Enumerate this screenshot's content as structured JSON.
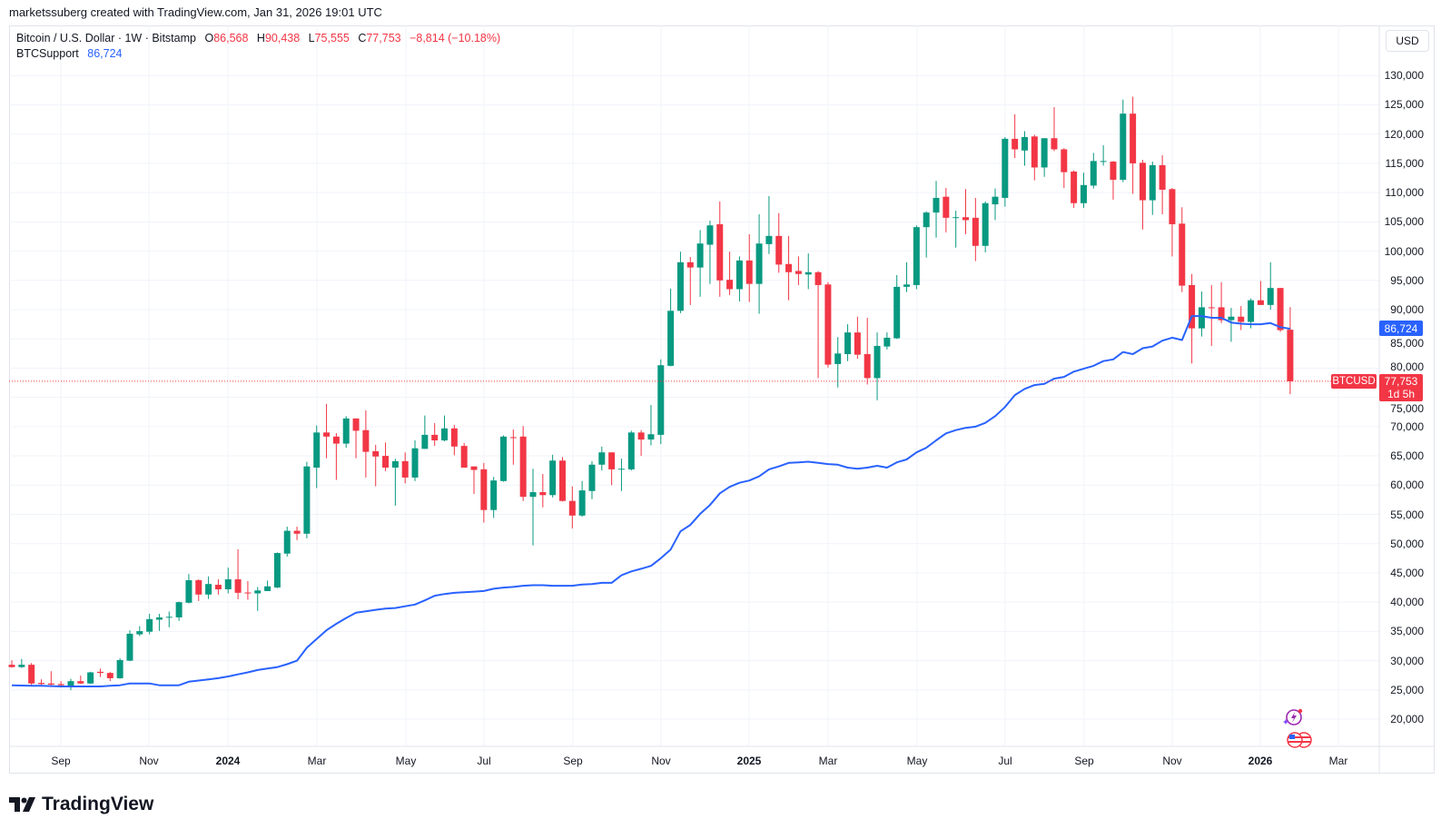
{
  "attribution": "marketssuberg created with TradingView.com, Jan 31, 2026 19:01 UTC",
  "legend": {
    "symbol": "Bitcoin / U.S. Dollar · 1W · Bitstamp",
    "o_label": "O",
    "o": "86,568",
    "h_label": "H",
    "h": "90,438",
    "l_label": "L",
    "l": "75,555",
    "c_label": "C",
    "c": "77,753",
    "change": "−8,814 (−10.18%)",
    "indicator_name": "BTCSupport",
    "indicator_value": "86,724"
  },
  "currency_button": "USD",
  "price_labels": {
    "indicator": "86,724",
    "symbol_tag": "BTCUSD",
    "last": "77,753",
    "countdown": "1d 5h"
  },
  "logo": "TradingView",
  "icons": [
    "economic-events-icon",
    "us-flag-events-icon",
    "tradingview-logo-icon"
  ],
  "colors": {
    "up": "#089981",
    "down": "#f23645",
    "indicator": "#2962ff",
    "grid": "#f0f3fa"
  },
  "chart_data": {
    "type": "candlestick",
    "interval": "1W",
    "ylim": [
      15350,
      138580
    ],
    "grid": true,
    "y_ticks": [
      "130,000",
      "125,000",
      "120,000",
      "115,000",
      "110,000",
      "105,000",
      "100,000",
      "95,000",
      "90,000",
      "85,000",
      "80,000",
      "75,000",
      "70,000",
      "65,000",
      "60,000",
      "55,000",
      "50,000",
      "45,000",
      "40,000",
      "35,000",
      "30,000",
      "25,000",
      "20,000"
    ],
    "x_ticks": [
      {
        "label": "Sep",
        "year": false
      },
      {
        "label": "Nov",
        "year": false
      },
      {
        "label": "2024",
        "year": true
      },
      {
        "label": "Mar",
        "year": false
      },
      {
        "label": "May",
        "year": false
      },
      {
        "label": "Jul",
        "year": false
      },
      {
        "label": "Sep",
        "year": false
      },
      {
        "label": "Nov",
        "year": false
      },
      {
        "label": "2025",
        "year": true
      },
      {
        "label": "Mar",
        "year": false
      },
      {
        "label": "May",
        "year": false
      },
      {
        "label": "Jul",
        "year": false
      },
      {
        "label": "Sep",
        "year": false
      },
      {
        "label": "Nov",
        "year": false
      },
      {
        "label": "2026",
        "year": true
      },
      {
        "label": "Mar",
        "year": false
      }
    ],
    "series": [
      {
        "name": "BTCUSD",
        "type": "candlestick",
        "ohlc_fields": [
          "open",
          "high",
          "low",
          "close"
        ],
        "ohlc": [
          [
            29300,
            30050,
            28800,
            28900
          ],
          [
            28900,
            30300,
            28750,
            29300
          ],
          [
            29300,
            29600,
            25750,
            26100
          ],
          [
            26200,
            26800,
            25800,
            26000
          ],
          [
            26100,
            28200,
            25500,
            25900
          ],
          [
            26000,
            26500,
            25400,
            25800
          ],
          [
            25750,
            26900,
            24950,
            26500
          ],
          [
            26500,
            27450,
            26000,
            26100
          ],
          [
            26100,
            28100,
            26000,
            28000
          ],
          [
            28100,
            28650,
            27200,
            27900
          ],
          [
            27900,
            28100,
            26500,
            27000
          ],
          [
            27000,
            30400,
            26900,
            30100
          ],
          [
            30000,
            35200,
            29900,
            34600
          ],
          [
            34500,
            35900,
            34200,
            35050
          ],
          [
            34950,
            38000,
            34500,
            37100
          ],
          [
            37000,
            38000,
            35100,
            37400
          ],
          [
            37450,
            38400,
            35700,
            37500
          ],
          [
            37400,
            40100,
            36800,
            40000
          ],
          [
            39900,
            44800,
            39800,
            43750
          ],
          [
            43750,
            43900,
            40200,
            41300
          ],
          [
            41300,
            44400,
            40550,
            43100
          ],
          [
            42970,
            43900,
            41300,
            42200
          ],
          [
            42200,
            45900,
            41500,
            43900
          ],
          [
            43900,
            49050,
            40500,
            41600
          ],
          [
            41650,
            43600,
            40400,
            41550
          ],
          [
            41500,
            42600,
            38500,
            42000
          ],
          [
            41900,
            43700,
            41900,
            42700
          ],
          [
            42500,
            48500,
            42400,
            48400
          ],
          [
            48300,
            52900,
            47800,
            52200
          ],
          [
            52200,
            52900,
            50600,
            51700
          ],
          [
            51700,
            64000,
            50900,
            63200
          ],
          [
            63000,
            70200,
            59500,
            69000
          ],
          [
            69000,
            73900,
            64600,
            68300
          ],
          [
            68300,
            68900,
            60900,
            67100
          ],
          [
            67100,
            71800,
            66400,
            71400
          ],
          [
            71400,
            71400,
            64600,
            69300
          ],
          [
            69400,
            72800,
            61300,
            65700
          ],
          [
            65800,
            66900,
            59800,
            64900
          ],
          [
            65000,
            67300,
            62400,
            63000
          ],
          [
            63000,
            64500,
            56500,
            64100
          ],
          [
            64100,
            65600,
            60300,
            61300
          ],
          [
            61300,
            67650,
            60700,
            66300
          ],
          [
            66200,
            71900,
            66200,
            68600
          ],
          [
            68600,
            70600,
            66700,
            67650
          ],
          [
            67650,
            71900,
            67500,
            69700
          ],
          [
            69700,
            70300,
            65100,
            66600
          ],
          [
            66700,
            67200,
            63000,
            63000
          ],
          [
            63200,
            63200,
            58500,
            62600
          ],
          [
            62700,
            63800,
            53600,
            55750
          ],
          [
            55750,
            61400,
            54400,
            60800
          ],
          [
            60700,
            68500,
            60600,
            68300
          ],
          [
            68200,
            69500,
            63500,
            68100
          ],
          [
            68300,
            70100,
            57300,
            58000
          ],
          [
            58000,
            62800,
            49700,
            58800
          ],
          [
            58800,
            61900,
            56200,
            58300
          ],
          [
            58300,
            65200,
            57900,
            64200
          ],
          [
            64200,
            64800,
            57200,
            57300
          ],
          [
            57300,
            59800,
            52600,
            54800
          ],
          [
            54800,
            60700,
            54600,
            59100
          ],
          [
            59000,
            64100,
            57600,
            63500
          ],
          [
            63500,
            66600,
            62500,
            65600
          ],
          [
            65600,
            65600,
            60000,
            62700
          ],
          [
            62700,
            64550,
            59000,
            62800
          ],
          [
            62700,
            69300,
            62500,
            69000
          ],
          [
            69000,
            69400,
            65000,
            67800
          ],
          [
            67800,
            73700,
            66800,
            68700
          ],
          [
            68600,
            81500,
            67000,
            80500
          ],
          [
            80400,
            93600,
            80300,
            89800
          ],
          [
            89800,
            99900,
            89400,
            98100
          ],
          [
            98100,
            99000,
            90800,
            97200
          ],
          [
            97200,
            103600,
            92200,
            101300
          ],
          [
            101100,
            105200,
            94400,
            104400
          ],
          [
            104600,
            108500,
            92200,
            95000
          ],
          [
            95100,
            99900,
            92500,
            93500
          ],
          [
            93500,
            99100,
            91400,
            98400
          ],
          [
            98400,
            102900,
            91300,
            94400
          ],
          [
            94400,
            106300,
            89300,
            101300
          ],
          [
            101200,
            109400,
            99500,
            102600
          ],
          [
            102600,
            106500,
            96300,
            97700
          ],
          [
            97800,
            102600,
            91600,
            96400
          ],
          [
            96600,
            99100,
            94200,
            96100
          ],
          [
            96000,
            99600,
            93500,
            96400
          ],
          [
            96400,
            96600,
            78300,
            94200
          ],
          [
            94300,
            94700,
            80100,
            80600
          ],
          [
            80700,
            85300,
            76700,
            82500
          ],
          [
            82400,
            87500,
            81200,
            86100
          ],
          [
            86100,
            88800,
            81600,
            82300
          ],
          [
            82400,
            88600,
            77200,
            78300
          ],
          [
            78300,
            86100,
            74500,
            83800
          ],
          [
            83700,
            86100,
            83200,
            85200
          ],
          [
            85100,
            95900,
            85000,
            93900
          ],
          [
            93900,
            98100,
            93000,
            94300
          ],
          [
            94200,
            104400,
            93500,
            104100
          ],
          [
            104100,
            106800,
            98900,
            106600
          ],
          [
            106600,
            112000,
            102300,
            109100
          ],
          [
            109300,
            110800,
            103200,
            105700
          ],
          [
            105700,
            106900,
            100600,
            105800
          ],
          [
            105800,
            110600,
            102900,
            105300
          ],
          [
            105700,
            109100,
            98300,
            100900
          ],
          [
            100900,
            108500,
            99800,
            108200
          ],
          [
            108000,
            110700,
            105300,
            109300
          ],
          [
            109100,
            119500,
            107600,
            119200
          ],
          [
            119200,
            123400,
            115900,
            117400
          ],
          [
            117200,
            120500,
            114600,
            119500
          ],
          [
            119600,
            119900,
            112100,
            114300
          ],
          [
            114300,
            119300,
            112700,
            119300
          ],
          [
            119300,
            124600,
            117100,
            117400
          ],
          [
            117400,
            117600,
            110800,
            113500
          ],
          [
            113600,
            113800,
            107400,
            108200
          ],
          [
            108200,
            113400,
            107400,
            111300
          ],
          [
            111200,
            116800,
            110700,
            115400
          ],
          [
            115400,
            118100,
            114600,
            115400
          ],
          [
            115300,
            115400,
            108800,
            112200
          ],
          [
            112200,
            125900,
            111800,
            123500
          ],
          [
            123500,
            126400,
            109800,
            115000
          ],
          [
            115100,
            115600,
            103700,
            108700
          ],
          [
            108700,
            115300,
            106200,
            114700
          ],
          [
            114700,
            116400,
            106300,
            110500
          ],
          [
            110600,
            110800,
            99100,
            104600
          ],
          [
            104700,
            107500,
            93000,
            94100
          ],
          [
            94200,
            96100,
            80800,
            86800
          ],
          [
            86800,
            93100,
            85400,
            90400
          ],
          [
            90400,
            94200,
            83800,
            90300
          ],
          [
            90400,
            94700,
            87700,
            88200
          ],
          [
            88200,
            90300,
            84500,
            88800
          ],
          [
            88800,
            90600,
            86500,
            87900
          ],
          [
            87900,
            91900,
            86800,
            91600
          ],
          [
            91600,
            94900,
            90800,
            90800
          ],
          [
            90800,
            98100,
            90000,
            93700
          ],
          [
            93700,
            93700,
            86200,
            86500
          ],
          [
            86568,
            90438,
            75555,
            77753
          ]
        ]
      },
      {
        "name": "BTCSupport",
        "type": "line",
        "values": [
          25800,
          25750,
          25700,
          25700,
          25650,
          25600,
          25600,
          25600,
          25600,
          25600,
          25700,
          25800,
          26100,
          26100,
          26100,
          25800,
          25800,
          25800,
          26400,
          26600,
          26800,
          27000,
          27300,
          27650,
          28000,
          28400,
          28650,
          28900,
          29400,
          30000,
          32200,
          33700,
          35200,
          36300,
          37300,
          38200,
          38450,
          38700,
          38900,
          39000,
          39300,
          39600,
          40300,
          41100,
          41400,
          41600,
          41700,
          41800,
          41900,
          42300,
          42500,
          42600,
          42800,
          42900,
          42900,
          42800,
          42800,
          42800,
          43000,
          43100,
          43300,
          43300,
          44600,
          45250,
          45700,
          46200,
          47500,
          49000,
          52100,
          53200,
          55100,
          56600,
          58600,
          59700,
          60400,
          60800,
          61500,
          62700,
          63200,
          63800,
          63900,
          64000,
          63800,
          63600,
          63500,
          63000,
          62800,
          63000,
          63300,
          63000,
          63900,
          64400,
          65600,
          66400,
          67650,
          68850,
          69400,
          69800,
          70000,
          70650,
          71800,
          73350,
          75400,
          76450,
          77100,
          77300,
          78200,
          78500,
          79400,
          79900,
          80400,
          81200,
          81500,
          82750,
          82400,
          83400,
          83700,
          84700,
          85200,
          84800,
          88900,
          88900,
          88600,
          88600,
          87800,
          87600,
          87500,
          87500,
          87700,
          87000,
          86724
        ]
      }
    ],
    "last_price": 77753
  }
}
